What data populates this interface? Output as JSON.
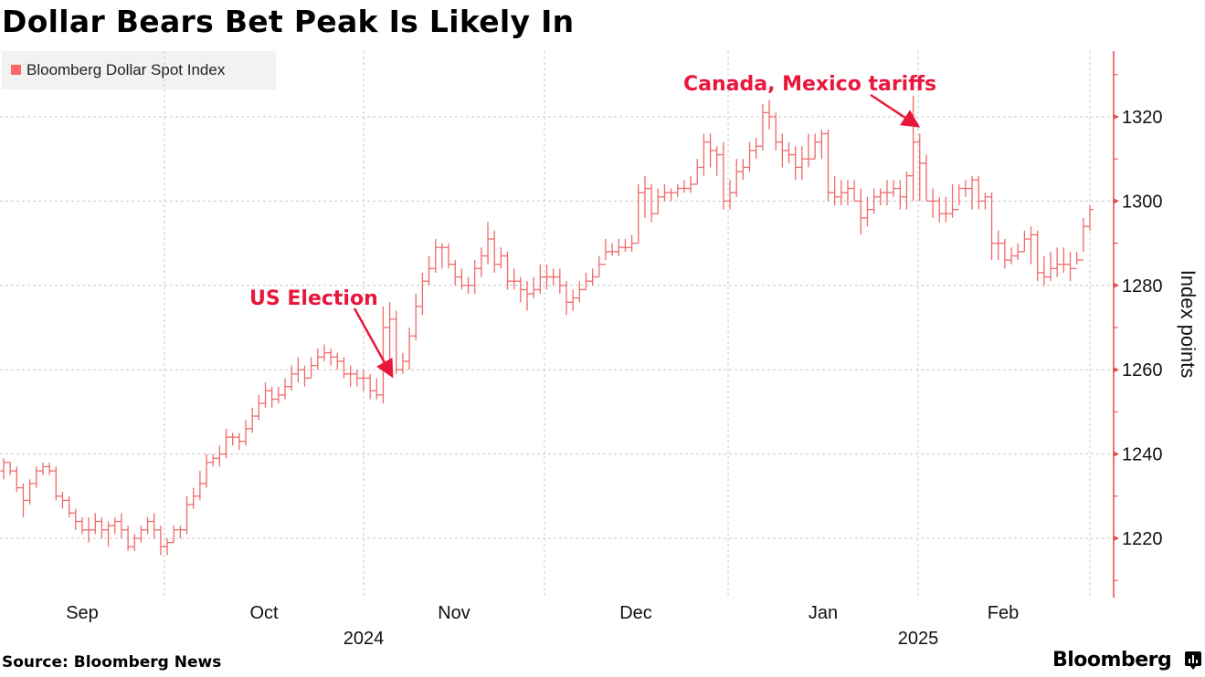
{
  "title": "Dollar Bears Bet Peak Is Likely In",
  "legend": {
    "label": "Bloomberg Dollar Spot Index",
    "color": "#ff6666"
  },
  "source": "Source: Bloomberg News",
  "brand": "Bloomberg",
  "colors": {
    "series": "#ee6a6a",
    "axis": "#e8474f",
    "annotation": "#e8173c",
    "grid": "#c8c8c8"
  },
  "chart_data": {
    "type": "ohlc",
    "title": "Dollar Bears Bet Peak Is Likely In",
    "xlabel": "",
    "ylabel": "Index points",
    "ylim": [
      1205,
      1337
    ],
    "yticks": [
      1220,
      1240,
      1260,
      1280,
      1300,
      1320
    ],
    "y_axis_side": "right",
    "grid": true,
    "legend_position": "top-left",
    "x_month_labels": [
      {
        "label": "Sep",
        "month_index": 0
      },
      {
        "label": "Oct",
        "month_index": 1
      },
      {
        "label": "Nov",
        "month_index": 2
      },
      {
        "label": "Dec",
        "month_index": 3
      },
      {
        "label": "Jan",
        "month_index": 4
      },
      {
        "label": "Feb",
        "month_index": 5
      }
    ],
    "x_year_labels": [
      {
        "label": "2024",
        "at_boundary": 2
      },
      {
        "label": "2025",
        "at_boundary": 4
      }
    ],
    "series": [
      {
        "name": "Bloomberg Dollar Spot Index",
        "close": [
          1238,
          1236,
          1232,
          1229,
          1233,
          1236,
          1237,
          1236,
          1230,
          1229,
          1226,
          1224,
          1222,
          1222,
          1224,
          1222,
          1223,
          1224,
          1222,
          1218,
          1220,
          1222,
          1224,
          1222,
          1218,
          1219,
          1222,
          1222,
          1228,
          1230,
          1233,
          1238,
          1239,
          1240,
          1244,
          1244,
          1243,
          1246,
          1249,
          1252,
          1255,
          1253,
          1254,
          1256,
          1259,
          1260,
          1258,
          1261,
          1263,
          1264,
          1263,
          1262,
          1259,
          1259,
          1258,
          1258,
          1255,
          1254,
          1270,
          1272,
          1260,
          1262,
          1268,
          1275,
          1281,
          1284,
          1289,
          1289,
          1285,
          1282,
          1280,
          1280,
          1284,
          1287,
          1291,
          1285,
          1287,
          1281,
          1281,
          1279,
          1278,
          1279,
          1282,
          1282,
          1282,
          1280,
          1276,
          1277,
          1279,
          1281,
          1282,
          1285,
          1288,
          1288,
          1289,
          1289,
          1290,
          1302,
          1303,
          1297,
          1301,
          1302,
          1302,
          1303,
          1303,
          1304,
          1308,
          1314,
          1312,
          1311,
          1300,
          1302,
          1307,
          1308,
          1312,
          1313,
          1321,
          1320,
          1314,
          1312,
          1311,
          1308,
          1310,
          1310,
          1314,
          1316,
          1302,
          1301,
          1302,
          1303,
          1300,
          1296,
          1298,
          1301,
          1302,
          1302,
          1303,
          1301,
          1306,
          1314,
          1309,
          1300,
          1300,
          1297,
          1297,
          1298,
          1303,
          1303,
          1305,
          1300,
          1301,
          1290,
          1290,
          1286,
          1287,
          1288,
          1291,
          1292,
          1283,
          1282,
          1284,
          1285,
          1285,
          1284,
          1286,
          1294,
          1298
        ],
        "open": [
          1236,
          1238,
          1236,
          1232,
          1229,
          1233,
          1236,
          1237,
          1236,
          1230,
          1229,
          1226,
          1224,
          1222,
          1222,
          1224,
          1222,
          1223,
          1224,
          1222,
          1218,
          1220,
          1222,
          1224,
          1222,
          1218,
          1219,
          1222,
          1222,
          1228,
          1230,
          1233,
          1238,
          1239,
          1240,
          1244,
          1244,
          1243,
          1246,
          1249,
          1252,
          1255,
          1253,
          1254,
          1256,
          1259,
          1260,
          1258,
          1261,
          1263,
          1264,
          1263,
          1262,
          1259,
          1259,
          1258,
          1258,
          1255,
          1254,
          1270,
          1272,
          1260,
          1262,
          1268,
          1275,
          1281,
          1284,
          1289,
          1289,
          1285,
          1282,
          1280,
          1280,
          1284,
          1287,
          1291,
          1285,
          1287,
          1281,
          1281,
          1279,
          1278,
          1279,
          1282,
          1282,
          1282,
          1280,
          1276,
          1277,
          1279,
          1281,
          1282,
          1285,
          1288,
          1288,
          1289,
          1289,
          1290,
          1302,
          1303,
          1297,
          1301,
          1302,
          1302,
          1303,
          1303,
          1304,
          1308,
          1314,
          1312,
          1311,
          1300,
          1302,
          1307,
          1308,
          1312,
          1313,
          1321,
          1320,
          1314,
          1312,
          1311,
          1308,
          1310,
          1310,
          1314,
          1316,
          1302,
          1301,
          1302,
          1303,
          1300,
          1296,
          1298,
          1301,
          1302,
          1302,
          1303,
          1301,
          1306,
          1314,
          1309,
          1300,
          1300,
          1297,
          1297,
          1298,
          1303,
          1303,
          1305,
          1300,
          1301,
          1290,
          1290,
          1286,
          1287,
          1288,
          1291,
          1292,
          1283,
          1282,
          1284,
          1285,
          1285,
          1284,
          1286,
          1294
        ],
        "high": [
          1239,
          1238,
          1237,
          1233,
          1234,
          1237,
          1238,
          1238,
          1237,
          1231,
          1230,
          1227,
          1225,
          1225,
          1226,
          1225,
          1224,
          1225,
          1226,
          1223,
          1221,
          1223,
          1225,
          1226,
          1223,
          1220,
          1223,
          1223,
          1230,
          1232,
          1236,
          1240,
          1240,
          1242,
          1246,
          1245,
          1245,
          1248,
          1251,
          1254,
          1257,
          1256,
          1256,
          1258,
          1261,
          1263,
          1261,
          1263,
          1265,
          1266,
          1265,
          1264,
          1263,
          1261,
          1260,
          1260,
          1259,
          1258,
          1275,
          1276,
          1274,
          1264,
          1270,
          1278,
          1283,
          1287,
          1291,
          1290,
          1290,
          1286,
          1284,
          1282,
          1286,
          1289,
          1295,
          1293,
          1289,
          1288,
          1284,
          1282,
          1281,
          1282,
          1285,
          1285,
          1284,
          1284,
          1281,
          1279,
          1281,
          1283,
          1284,
          1287,
          1291,
          1290,
          1291,
          1291,
          1292,
          1304,
          1306,
          1304,
          1303,
          1304,
          1303,
          1304,
          1305,
          1306,
          1310,
          1316,
          1316,
          1313,
          1314,
          1305,
          1310,
          1310,
          1314,
          1315,
          1323,
          1324,
          1321,
          1316,
          1314,
          1313,
          1313,
          1316,
          1316,
          1317,
          1317,
          1306,
          1305,
          1305,
          1305,
          1303,
          1301,
          1303,
          1303,
          1305,
          1305,
          1305,
          1307,
          1325,
          1316,
          1311,
          1303,
          1301,
          1301,
          1304,
          1304,
          1305,
          1306,
          1306,
          1302,
          1302,
          1293,
          1291,
          1289,
          1290,
          1293,
          1294,
          1293,
          1287,
          1288,
          1289,
          1289,
          1288,
          1288,
          1296,
          1299
        ],
        "low": [
          1234,
          1235,
          1231,
          1225,
          1228,
          1232,
          1235,
          1235,
          1229,
          1227,
          1225,
          1222,
          1221,
          1219,
          1221,
          1220,
          1218,
          1221,
          1220,
          1217,
          1217,
          1219,
          1221,
          1220,
          1216,
          1216,
          1219,
          1220,
          1221,
          1227,
          1229,
          1232,
          1237,
          1237,
          1239,
          1242,
          1241,
          1242,
          1245,
          1248,
          1251,
          1251,
          1252,
          1253,
          1255,
          1257,
          1256,
          1258,
          1260,
          1262,
          1261,
          1260,
          1258,
          1256,
          1256,
          1255,
          1253,
          1253,
          1252,
          1259,
          1259,
          1259,
          1260,
          1267,
          1273,
          1280,
          1283,
          1284,
          1284,
          1280,
          1279,
          1278,
          1278,
          1282,
          1285,
          1283,
          1284,
          1279,
          1279,
          1276,
          1274,
          1277,
          1278,
          1279,
          1280,
          1278,
          1273,
          1274,
          1276,
          1279,
          1280,
          1282,
          1286,
          1287,
          1287,
          1288,
          1288,
          1290,
          1296,
          1295,
          1297,
          1300,
          1300,
          1301,
          1302,
          1302,
          1304,
          1306,
          1308,
          1306,
          1298,
          1298,
          1301,
          1305,
          1307,
          1310,
          1312,
          1317,
          1312,
          1308,
          1309,
          1305,
          1305,
          1308,
          1310,
          1310,
          1300,
          1299,
          1299,
          1299,
          1300,
          1292,
          1294,
          1297,
          1299,
          1299,
          1301,
          1298,
          1298,
          1300,
          1300,
          1300,
          1296,
          1295,
          1295,
          1296,
          1299,
          1301,
          1298,
          1298,
          1298,
          1286,
          1286,
          1284,
          1285,
          1286,
          1288,
          1285,
          1281,
          1280,
          1281,
          1282,
          1283,
          1281,
          1285,
          1288,
          1293
        ]
      }
    ],
    "annotations": [
      {
        "text": "US Election",
        "points_to_bar": 57
      },
      {
        "text": "Canada, Mexico tariffs",
        "points_to_bar": 140
      }
    ]
  }
}
